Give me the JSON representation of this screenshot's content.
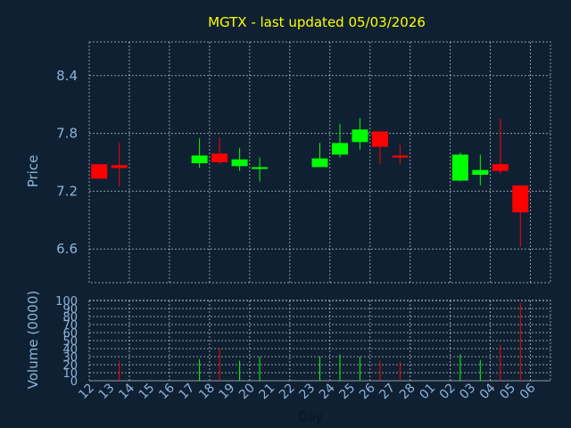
{
  "chart_data": {
    "type": "candlestick",
    "title": "MGTX - last updated 05/03/2026",
    "xlabel": "Day",
    "ylabel": "Price",
    "volume_ylabel": "Volume (0000)",
    "price_ylim": [
      6.25,
      8.75
    ],
    "price_ticks": [
      "6.6",
      "7.2",
      "7.8",
      "8.4"
    ],
    "volume_ylim": [
      0,
      100
    ],
    "volume_ticks": [
      "0",
      "10",
      "20",
      "30",
      "40",
      "50",
      "60",
      "70",
      "80",
      "90",
      "100"
    ],
    "x_labels": [
      "12",
      "13",
      "14",
      "15",
      "16",
      "17",
      "18",
      "19",
      "20",
      "21",
      "22",
      "23",
      "24",
      "25",
      "26",
      "27",
      "28",
      "01",
      "02",
      "03",
      "04",
      "05",
      "06"
    ],
    "colors": {
      "up": "#00ff00",
      "down": "#ff0000",
      "grid": "#ffffff",
      "title": "#ffff00",
      "axis_text": "#8fb4d8",
      "background": "#0f2033"
    },
    "series": [
      {
        "day": "12",
        "open": 7.48,
        "high": 7.48,
        "low": 7.33,
        "close": 7.33,
        "volume": 0
      },
      {
        "day": "13",
        "open": 7.47,
        "high": 7.7,
        "low": 7.25,
        "close": 7.44,
        "volume": 25
      },
      {
        "day": "17",
        "open": 7.49,
        "high": 7.75,
        "low": 7.44,
        "close": 7.57,
        "volume": 27
      },
      {
        "day": "18",
        "open": 7.59,
        "high": 7.76,
        "low": 7.48,
        "close": 7.5,
        "volume": 40
      },
      {
        "day": "19",
        "open": 7.46,
        "high": 7.65,
        "low": 7.41,
        "close": 7.53,
        "volume": 25
      },
      {
        "day": "20",
        "open": 7.43,
        "high": 7.55,
        "low": 7.3,
        "close": 7.44,
        "volume": 30
      },
      {
        "day": "23",
        "open": 7.45,
        "high": 7.7,
        "low": 7.45,
        "close": 7.54,
        "volume": 30
      },
      {
        "day": "24",
        "open": 7.58,
        "high": 7.9,
        "low": 7.55,
        "close": 7.7,
        "volume": 33
      },
      {
        "day": "25",
        "open": 7.71,
        "high": 7.96,
        "low": 7.63,
        "close": 7.84,
        "volume": 30
      },
      {
        "day": "26",
        "open": 7.82,
        "high": 7.82,
        "low": 7.48,
        "close": 7.66,
        "volume": 25
      },
      {
        "day": "27",
        "open": 7.57,
        "high": 7.68,
        "low": 7.48,
        "close": 7.55,
        "volume": 24
      },
      {
        "day": "02",
        "open": 7.31,
        "high": 7.6,
        "low": 7.3,
        "close": 7.58,
        "volume": 33
      },
      {
        "day": "03",
        "open": 7.37,
        "high": 7.58,
        "low": 7.26,
        "close": 7.42,
        "volume": 26
      },
      {
        "day": "04",
        "open": 7.48,
        "high": 7.95,
        "low": 7.38,
        "close": 7.41,
        "volume": 45
      },
      {
        "day": "05",
        "open": 7.26,
        "high": 7.26,
        "low": 6.62,
        "close": 6.98,
        "volume": 97
      }
    ]
  }
}
